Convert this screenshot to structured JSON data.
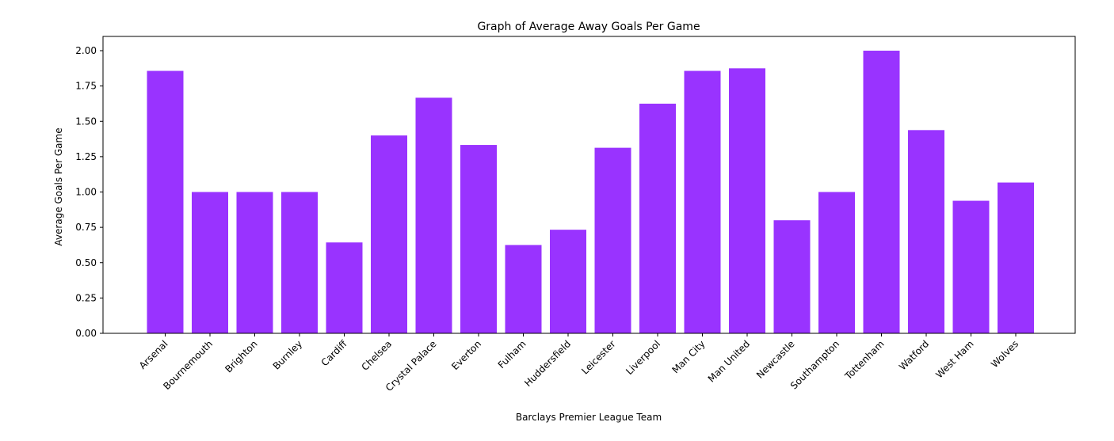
{
  "chart_data": {
    "type": "bar",
    "title": "Graph of Average Away Goals Per Game",
    "xlabel": "Barclays Premier League Team",
    "ylabel": "Average Goals Per Game",
    "ylim": [
      0,
      2.1
    ],
    "yticks": [
      "0.00",
      "0.25",
      "0.50",
      "0.75",
      "1.00",
      "1.25",
      "1.50",
      "1.75",
      "2.00"
    ],
    "ytick_values": [
      0,
      0.25,
      0.5,
      0.75,
      1.0,
      1.25,
      1.5,
      1.75,
      2.0
    ],
    "grid": false,
    "bar_color": "#9933ff",
    "categories": [
      "Arsenal",
      "Bournemouth",
      "Brighton",
      "Burnley",
      "Cardiff",
      "Chelsea",
      "Crystal Palace",
      "Everton",
      "Fulham",
      "Huddersfield",
      "Leicester",
      "Liverpool",
      "Man City",
      "Man United",
      "Newcastle",
      "Southampton",
      "Tottenham",
      "Watford",
      "West Ham",
      "Wolves"
    ],
    "values": [
      1.857,
      1.0,
      1.0,
      1.0,
      0.643,
      1.4,
      1.667,
      1.333,
      0.625,
      0.733,
      1.313,
      1.625,
      1.857,
      1.875,
      0.8,
      1.0,
      2.0,
      1.438,
      0.938,
      1.067
    ]
  }
}
